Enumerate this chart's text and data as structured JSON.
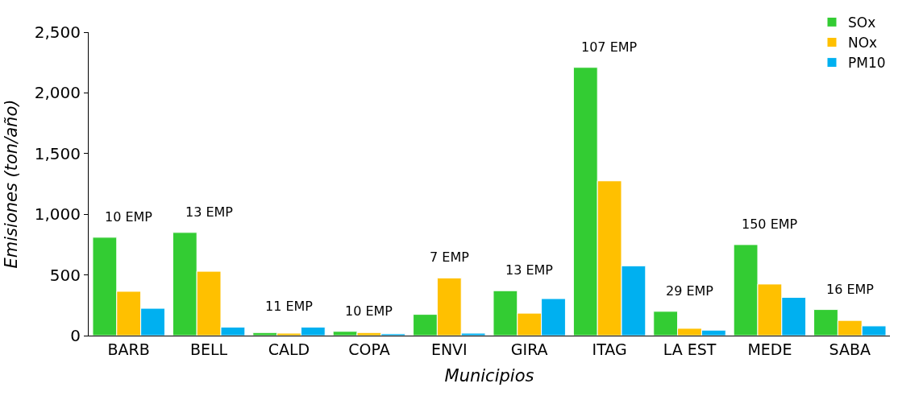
{
  "chart_data": {
    "type": "bar",
    "xlabel": "Municipios",
    "ylabel": "Emisiones (ton/año)",
    "categories": [
      "BARB",
      "BELL",
      "CALD",
      "COPA",
      "ENVI",
      "GIRA",
      "ITAG",
      "LA EST",
      "MEDE",
      "SABA"
    ],
    "series": [
      {
        "name": "SOx",
        "color": "#33cc33",
        "values": [
          810,
          850,
          25,
          35,
          175,
          370,
          2210,
          200,
          750,
          215
        ]
      },
      {
        "name": "NOx",
        "color": "#ffc000",
        "values": [
          365,
          530,
          20,
          25,
          475,
          185,
          1275,
          60,
          425,
          125
        ]
      },
      {
        "name": "PM10",
        "color": "#00b0f0",
        "values": [
          225,
          70,
          70,
          15,
          20,
          305,
          575,
          45,
          315,
          80
        ]
      }
    ],
    "ylim": [
      0,
      2500
    ],
    "yticks": [
      {
        "value": 0,
        "label": "0"
      },
      {
        "value": 500,
        "label": "500"
      },
      {
        "value": 1000,
        "label": "1,000"
      },
      {
        "value": 1500,
        "label": "1,500"
      },
      {
        "value": 2000,
        "label": "2,000"
      },
      {
        "value": 2500,
        "label": "2,500"
      }
    ],
    "grid": false,
    "legend": "top right",
    "annotations": [
      "10 EMP",
      "13 EMP",
      "11 EMP",
      "10 EMP",
      "7 EMP",
      "13 EMP",
      "107 EMP",
      "29 EMP",
      "150 EMP",
      "16 EMP"
    ]
  }
}
